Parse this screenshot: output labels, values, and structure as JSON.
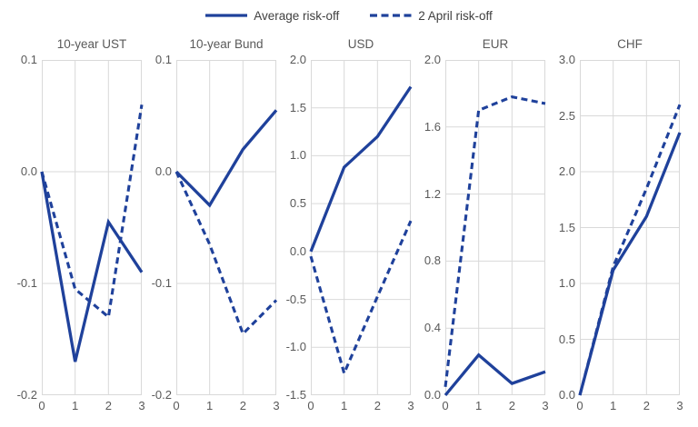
{
  "legend": {
    "items": [
      {
        "label": "Average risk-off",
        "style": "solid"
      },
      {
        "label": "2 April risk-off",
        "style": "dashed"
      }
    ]
  },
  "colors": {
    "line": "#1f419b",
    "grid": "#d9d9d9",
    "tick_text": "#595959",
    "title_text": "#595959",
    "legend_text": "#404040"
  },
  "chart_data": [
    {
      "type": "line",
      "title": "10-year UST",
      "x": [
        0,
        1,
        2,
        3
      ],
      "xtick_labels": [
        "0",
        "1",
        "2",
        "3"
      ],
      "ylim": [
        -0.2,
        0.1
      ],
      "yticks": [
        0.1,
        0.0,
        -0.1,
        -0.2
      ],
      "ytick_labels": [
        "0.1",
        "0.0",
        "-0.1",
        "-0.2"
      ],
      "grid": true,
      "legend_position": "top",
      "series": [
        {
          "name": "Average risk-off",
          "style": "solid",
          "values": [
            0.0,
            -0.17,
            -0.045,
            -0.09
          ]
        },
        {
          "name": "2 April risk-off",
          "style": "dashed",
          "values": [
            0.0,
            -0.105,
            -0.13,
            0.06
          ]
        }
      ]
    },
    {
      "type": "line",
      "title": "10-year Bund",
      "x": [
        0,
        1,
        2,
        3
      ],
      "xtick_labels": [
        "0",
        "1",
        "2",
        "3"
      ],
      "ylim": [
        -0.2,
        0.1
      ],
      "yticks": [
        0.1,
        0.0,
        -0.1,
        -0.2
      ],
      "ytick_labels": [
        "0.1",
        "0.0",
        "-0.1",
        "-0.2"
      ],
      "grid": true,
      "legend_position": "top",
      "series": [
        {
          "name": "Average risk-off",
          "style": "solid",
          "values": [
            0.0,
            -0.03,
            0.02,
            0.055
          ]
        },
        {
          "name": "2 April risk-off",
          "style": "dashed",
          "values": [
            0.0,
            -0.065,
            -0.145,
            -0.115
          ]
        }
      ]
    },
    {
      "type": "line",
      "title": "USD",
      "x": [
        0,
        1,
        2,
        3
      ],
      "xtick_labels": [
        "0",
        "1",
        "2",
        "3"
      ],
      "ylim": [
        -1.5,
        2.0
      ],
      "yticks": [
        2.0,
        1.5,
        1.0,
        0.5,
        0.0,
        -0.5,
        -1.0,
        -1.5
      ],
      "ytick_labels": [
        "2.0",
        "1.5",
        "1.0",
        "0.5",
        "0.0",
        "-0.5",
        "-1.0",
        "-1.5"
      ],
      "grid": true,
      "legend_position": "top",
      "series": [
        {
          "name": "Average risk-off",
          "style": "solid",
          "values": [
            0.0,
            0.88,
            1.2,
            1.72
          ]
        },
        {
          "name": "2 April risk-off",
          "style": "dashed",
          "values": [
            -0.05,
            -1.27,
            -0.47,
            0.32
          ]
        }
      ]
    },
    {
      "type": "line",
      "title": "EUR",
      "x": [
        0,
        1,
        2,
        3
      ],
      "xtick_labels": [
        "0",
        "1",
        "2",
        "3"
      ],
      "ylim": [
        0.0,
        2.0
      ],
      "yticks": [
        2.0,
        1.6,
        1.2,
        0.8,
        0.4,
        0.0
      ],
      "ytick_labels": [
        "2.0",
        "1.6",
        "1.2",
        "0.8",
        "0.4",
        "0.0"
      ],
      "grid": true,
      "legend_position": "top",
      "series": [
        {
          "name": "Average risk-off",
          "style": "solid",
          "values": [
            0.0,
            0.24,
            0.07,
            0.14
          ]
        },
        {
          "name": "2 April risk-off",
          "style": "dashed",
          "values": [
            0.05,
            1.7,
            1.78,
            1.74
          ]
        }
      ]
    },
    {
      "type": "line",
      "title": "CHF",
      "x": [
        0,
        1,
        2,
        3
      ],
      "xtick_labels": [
        "0",
        "1",
        "2",
        "3"
      ],
      "ylim": [
        0.0,
        3.0
      ],
      "yticks": [
        3.0,
        2.5,
        2.0,
        1.5,
        1.0,
        0.5,
        0.0
      ],
      "ytick_labels": [
        "3.0",
        "2.5",
        "2.0",
        "1.5",
        "1.0",
        "0.5",
        "0.0"
      ],
      "grid": true,
      "legend_position": "top",
      "series": [
        {
          "name": "Average risk-off",
          "style": "solid",
          "values": [
            0.0,
            1.12,
            1.6,
            2.35
          ]
        },
        {
          "name": "2 April risk-off",
          "style": "dashed",
          "values": [
            0.0,
            1.15,
            1.85,
            2.6
          ]
        }
      ]
    }
  ]
}
